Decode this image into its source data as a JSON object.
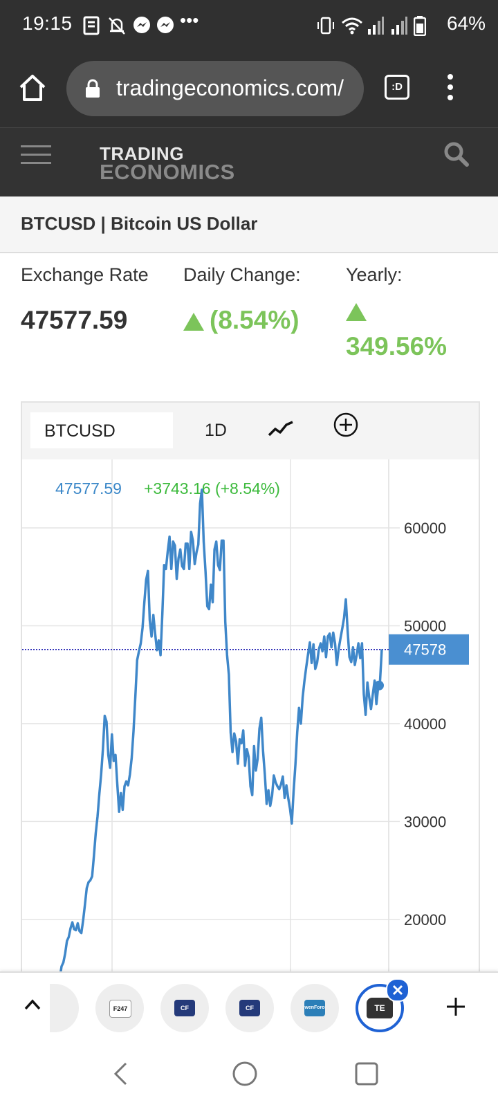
{
  "status_bar": {
    "time": "19:15",
    "battery": "64%",
    "overflow": "•••"
  },
  "browser": {
    "url": "tradingeconomics.com/",
    "tab_switch_label": ":D"
  },
  "site": {
    "logo_line1": "TRADING",
    "logo_line2": "ECONOMICS"
  },
  "page": {
    "title": "BTCUSD | Bitcoin US Dollar"
  },
  "stats": {
    "exchange_rate_label": "Exchange Rate",
    "exchange_rate_value": "47577.59",
    "daily_change_label": "Daily Change:",
    "daily_change_value": "(8.54%)",
    "yearly_label": "Yearly:",
    "yearly_value": "349.56%"
  },
  "chart_toolbar": {
    "symbol": "BTCUSD",
    "period": "1D"
  },
  "chart_data": {
    "type": "line",
    "header_price": "47577.59",
    "header_change": "+3743.16 (+8.54%)",
    "y_ticks": [
      20000,
      30000,
      40000,
      50000,
      60000
    ],
    "ylim": [
      12000,
      67000
    ],
    "current_value_label": "47578",
    "current_value": 47578,
    "series_values": [
      10500,
      11200,
      12100,
      12800,
      14000,
      15200,
      15600,
      16500,
      17800,
      18200,
      19100,
      19700,
      19000,
      18900,
      19600,
      18800,
      18600,
      19900,
      21500,
      23200,
      23800,
      24000,
      24400,
      26500,
      28800,
      30500,
      32800,
      34800,
      37400,
      40800,
      40200,
      36800,
      35500,
      38900,
      36200,
      36800,
      33800,
      31000,
      32900,
      31200,
      33600,
      34100,
      33700,
      34800,
      36500,
      39200,
      42800,
      46500,
      47400,
      48200,
      49800,
      52400,
      54700,
      55600,
      50600,
      48900,
      51100,
      49200,
      47500,
      48500,
      47000,
      51200,
      56200,
      55800,
      57600,
      59100,
      55800,
      58600,
      58200,
      54800,
      56900,
      57800,
      56100,
      55800,
      58400,
      58400,
      55800,
      59600,
      58700,
      56300,
      57500,
      58300,
      62500,
      63900,
      58600,
      55600,
      52000,
      51700,
      54200,
      52400,
      57800,
      58600,
      56200,
      55700,
      58700,
      58700,
      50400,
      47000,
      45000,
      39100,
      37100,
      39000,
      38200,
      35900,
      38400,
      38000,
      39300,
      35700,
      37400,
      36600,
      33600,
      32700,
      37700,
      35200,
      36400,
      39500,
      40600,
      37200,
      34800,
      31800,
      33200,
      31600,
      32600,
      34700,
      34000,
      33600,
      33300,
      33800,
      34600,
      32400,
      33700,
      32400,
      31300,
      29800,
      33100,
      35800,
      39100,
      41600,
      40000,
      42700,
      44400,
      45800,
      47100,
      48300,
      46200,
      48100,
      45600,
      46200,
      47600,
      48200,
      47400,
      48900,
      46800,
      48900,
      49200,
      47800,
      49300,
      48200,
      46000,
      47600,
      48700,
      49700,
      50800,
      52700,
      49500,
      46800,
      46300,
      47800,
      46000,
      47000,
      48200,
      46700,
      48200,
      43000,
      40900,
      44200,
      42700,
      41500,
      43000,
      44400,
      42000,
      43800,
      44300,
      47600
    ],
    "last_marker_value": 43900
  },
  "tabs": {
    "favicons": [
      "",
      "F247",
      "CF",
      "CF",
      "wenForo",
      "TE"
    ]
  }
}
